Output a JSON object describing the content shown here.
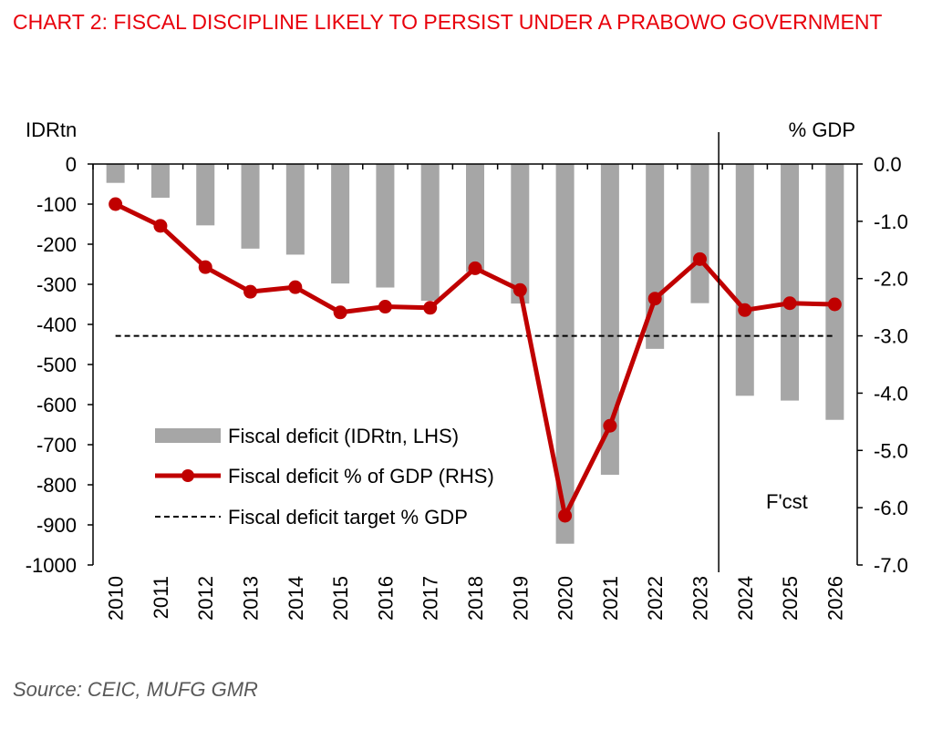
{
  "title": "CHART 2: FISCAL DISCIPLINE LIKELY TO PERSIST UNDER A PRABOWO GOVERNMENT",
  "source": "Source: CEIC, MUFG GMR",
  "chart_data": {
    "type": "bar",
    "categories": [
      "2010",
      "2011",
      "2012",
      "2013",
      "2014",
      "2015",
      "2016",
      "2017",
      "2018",
      "2019",
      "2020",
      "2021",
      "2022",
      "2023",
      "2024",
      "2025",
      "2026"
    ],
    "left_axis": {
      "label": "IDRtn",
      "ylim": [
        -1000,
        0
      ],
      "ticks": [
        0,
        -100,
        -200,
        -300,
        -400,
        -500,
        -600,
        -700,
        -800,
        -900,
        -1000
      ],
      "tick_labels": [
        "0",
        "-100",
        "-200",
        "-300",
        "-400",
        "-500",
        "-600",
        "-700",
        "-800",
        "-900",
        "-1000"
      ]
    },
    "right_axis": {
      "label": "% GDP",
      "ylim": [
        -7.0,
        0.0
      ],
      "ticks": [
        0,
        -1,
        -2,
        -3,
        -4,
        -5,
        -6,
        -7
      ],
      "tick_labels": [
        "0.0",
        "-1.0",
        "-2.0",
        "-3.0",
        "-4.0",
        "-5.0",
        "-6.0",
        "-7.0"
      ]
    },
    "series": [
      {
        "name": "Fiscal deficit (IDRtn, LHS)",
        "kind": "bar",
        "axis": "left",
        "color": "#a6a6a6",
        "values": [
          -47,
          -84,
          -153,
          -211,
          -226,
          -298,
          -308,
          -341,
          -269,
          -348,
          -947,
          -775,
          -461,
          -347,
          -578,
          -590,
          -638
        ]
      },
      {
        "name": "Fiscal deficit % of GDP (RHS)",
        "kind": "line",
        "axis": "right",
        "color": "#c00000",
        "values": [
          -0.7,
          -1.08,
          -1.8,
          -2.23,
          -2.15,
          -2.59,
          -2.49,
          -2.51,
          -1.82,
          -2.2,
          -6.14,
          -4.57,
          -2.35,
          -1.66,
          -2.55,
          -2.43,
          -2.45
        ]
      },
      {
        "name": "Fiscal deficit target % GDP",
        "kind": "dashed-line",
        "axis": "right",
        "color": "#000000",
        "values": [
          -3.0,
          -3.0,
          -3.0,
          -3.0,
          -3.0,
          -3.0,
          -3.0,
          -3.0,
          -3.0,
          -3.0,
          -3.0,
          -3.0,
          -3.0,
          -3.0,
          -3.0,
          -3.0,
          -3.0
        ]
      }
    ],
    "forecast_label": "F'cst",
    "forecast_start": "2024",
    "legend_position": "bottom-left",
    "grid": false
  }
}
